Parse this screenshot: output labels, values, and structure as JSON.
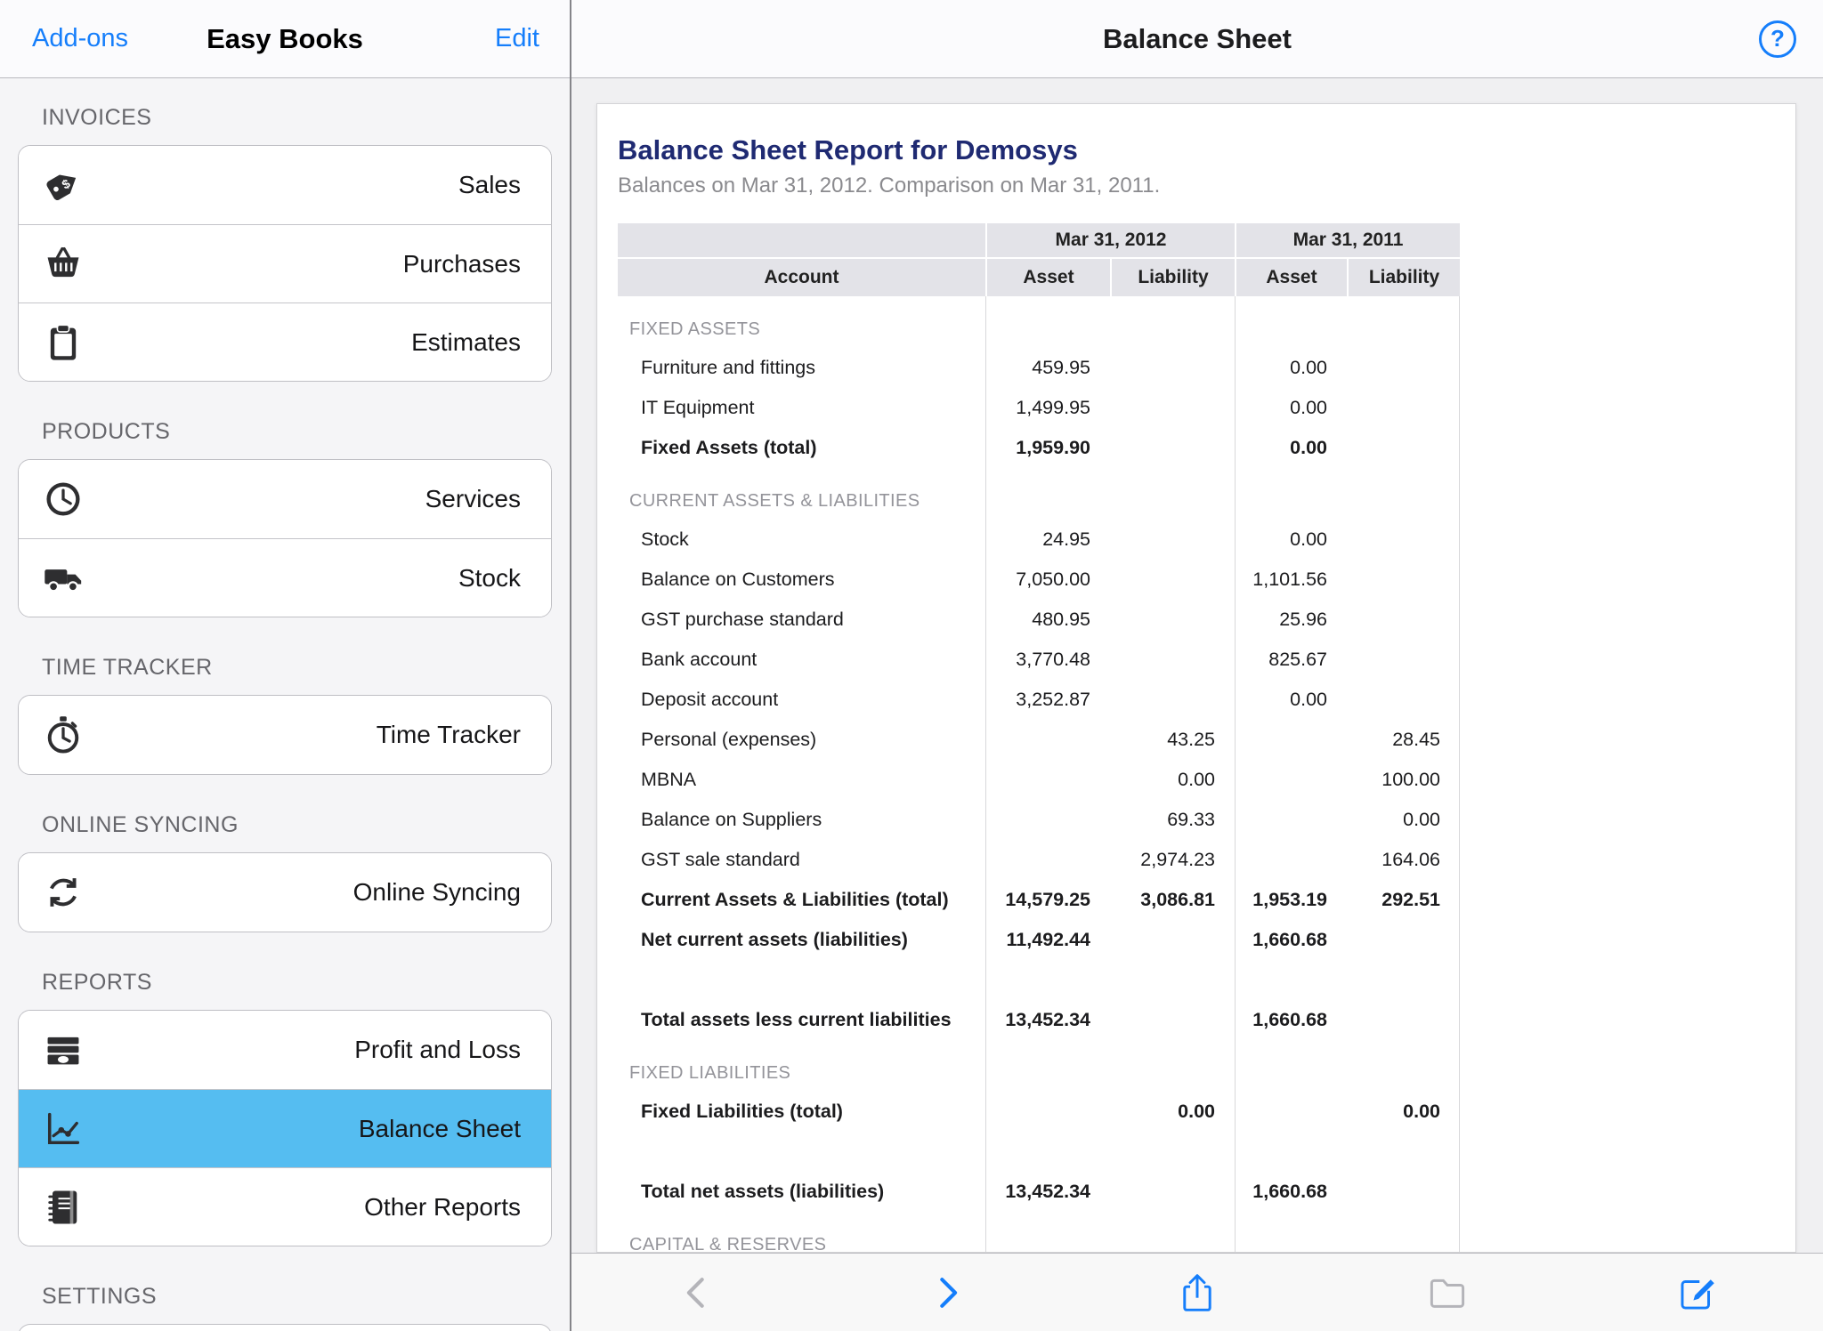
{
  "sidebar_nav": {
    "addons": "Add-ons",
    "title": "Easy Books",
    "edit": "Edit"
  },
  "sidebar": {
    "sections": [
      {
        "title": "INVOICES",
        "items": [
          {
            "label": "Sales",
            "icon": "price-tag-icon"
          },
          {
            "label": "Purchases",
            "icon": "basket-icon"
          },
          {
            "label": "Estimates",
            "icon": "clipboard-icon"
          }
        ]
      },
      {
        "title": "PRODUCTS",
        "items": [
          {
            "label": "Services",
            "icon": "clock-icon"
          },
          {
            "label": "Stock",
            "icon": "truck-icon"
          }
        ]
      },
      {
        "title": "TIME TRACKER",
        "items": [
          {
            "label": "Time Tracker",
            "icon": "stopwatch-icon"
          }
        ]
      },
      {
        "title": "ONLINE SYNCING",
        "items": [
          {
            "label": "Online Syncing",
            "icon": "sync-icon"
          }
        ]
      },
      {
        "title": "REPORTS",
        "items": [
          {
            "label": "Profit and Loss",
            "icon": "money-icon"
          },
          {
            "label": "Balance Sheet",
            "icon": "chart-icon",
            "selected": true
          },
          {
            "label": "Other Reports",
            "icon": "notebook-icon"
          }
        ]
      },
      {
        "title": "SETTINGS",
        "items": [],
        "partial_group": true
      }
    ]
  },
  "main_nav": {
    "title": "Balance Sheet",
    "help": "?"
  },
  "report": {
    "title": "Balance Sheet Report for Demosys",
    "subtitle": "Balances on Mar 31, 2012. Comparison on Mar 31, 2011.",
    "table": {
      "col_groups": [
        "Mar 31, 2012",
        "Mar 31, 2011"
      ],
      "columns": [
        "Account",
        "Asset",
        "Liability",
        "Asset",
        "Liability"
      ],
      "rows": [
        {
          "type": "section",
          "label": "FIXED ASSETS"
        },
        {
          "type": "row",
          "label": "Furniture and fittings",
          "values": [
            "459.95",
            "",
            "0.00",
            ""
          ]
        },
        {
          "type": "row",
          "label": "IT Equipment",
          "values": [
            "1,499.95",
            "",
            "0.00",
            ""
          ]
        },
        {
          "type": "row",
          "bold": true,
          "label": "Fixed Assets (total)",
          "values": [
            "1,959.90",
            "",
            "0.00",
            ""
          ]
        },
        {
          "type": "section",
          "label": "CURRENT ASSETS & LIABILITIES"
        },
        {
          "type": "row",
          "label": "Stock",
          "values": [
            "24.95",
            "",
            "0.00",
            ""
          ]
        },
        {
          "type": "row",
          "label": "Balance on Customers",
          "values": [
            "7,050.00",
            "",
            "1,101.56",
            ""
          ]
        },
        {
          "type": "row",
          "label": "GST purchase standard",
          "values": [
            "480.95",
            "",
            "25.96",
            ""
          ]
        },
        {
          "type": "row",
          "label": "Bank account",
          "values": [
            "3,770.48",
            "",
            "825.67",
            ""
          ]
        },
        {
          "type": "row",
          "label": "Deposit account",
          "values": [
            "3,252.87",
            "",
            "0.00",
            ""
          ]
        },
        {
          "type": "row",
          "label": "Personal (expenses)",
          "values": [
            "",
            "43.25",
            "",
            "28.45"
          ]
        },
        {
          "type": "row",
          "label": "MBNA",
          "values": [
            "",
            "0.00",
            "",
            "100.00"
          ]
        },
        {
          "type": "row",
          "label": "Balance on Suppliers",
          "values": [
            "",
            "69.33",
            "",
            "0.00"
          ]
        },
        {
          "type": "row",
          "label": "GST sale standard",
          "values": [
            "",
            "2,974.23",
            "",
            "164.06"
          ]
        },
        {
          "type": "row",
          "bold": true,
          "label": "Current Assets & Liabilities (total)",
          "values": [
            "14,579.25",
            "3,086.81",
            "1,953.19",
            "292.51"
          ]
        },
        {
          "type": "row",
          "bold": true,
          "label": "Net current assets (liabilities)",
          "values": [
            "11,492.44",
            "",
            "1,660.68",
            ""
          ]
        },
        {
          "type": "spacer"
        },
        {
          "type": "row",
          "bold": true,
          "label": "Total assets less current liabilities",
          "values": [
            "13,452.34",
            "",
            "1,660.68",
            ""
          ]
        },
        {
          "type": "section",
          "label": "FIXED LIABILITIES"
        },
        {
          "type": "row",
          "bold": true,
          "label": "Fixed Liabilities (total)",
          "values": [
            "",
            "0.00",
            "",
            "0.00"
          ]
        },
        {
          "type": "spacer"
        },
        {
          "type": "row",
          "bold": true,
          "label": "Total net assets (liabilities)",
          "values": [
            "13,452.34",
            "",
            "1,660.68",
            ""
          ]
        },
        {
          "type": "section",
          "label": "CAPITAL & RESERVES"
        }
      ]
    }
  },
  "toolbar": {
    "buttons": [
      {
        "icon": "back-chevron-icon",
        "enabled": false
      },
      {
        "icon": "forward-chevron-icon",
        "enabled": true
      },
      {
        "icon": "share-icon",
        "enabled": true
      },
      {
        "icon": "folder-icon",
        "enabled": false
      },
      {
        "icon": "compose-icon",
        "enabled": true
      }
    ]
  },
  "colors": {
    "accent_blue": "#157efb",
    "selected_item_blue": "#55bdf1",
    "report_title_navy": "#1f2a72",
    "table_header_gray": "#e3e3e8"
  }
}
